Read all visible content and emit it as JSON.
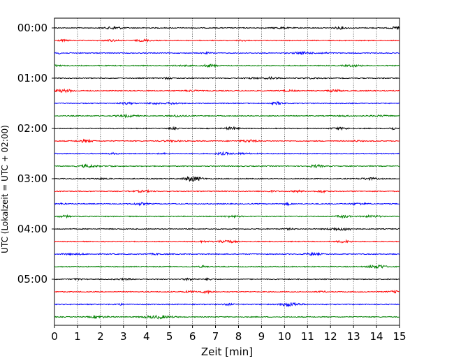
{
  "chart_data": {
    "type": "line",
    "xlabel": "Zeit  [min]",
    "ylabel": "UTC (Lokalzeit = UTC + 02:00)",
    "xlim": [
      0,
      15
    ],
    "x_ticks": [
      "0",
      "1",
      "2",
      "3",
      "4",
      "5",
      "6",
      "7",
      "8",
      "9",
      "10",
      "11",
      "12",
      "13",
      "14",
      "15"
    ],
    "y_tick_labels": [
      "00:00",
      "01:00",
      "02:00",
      "03:00",
      "04:00",
      "05:00"
    ],
    "trace_interval_min": 15,
    "trace_start": "00:00",
    "trace_count": 24,
    "trace_colors": [
      "#000000",
      "#ff0000",
      "#0000ff",
      "#008000"
    ],
    "grid": "vertical dotted lines at each minute"
  }
}
